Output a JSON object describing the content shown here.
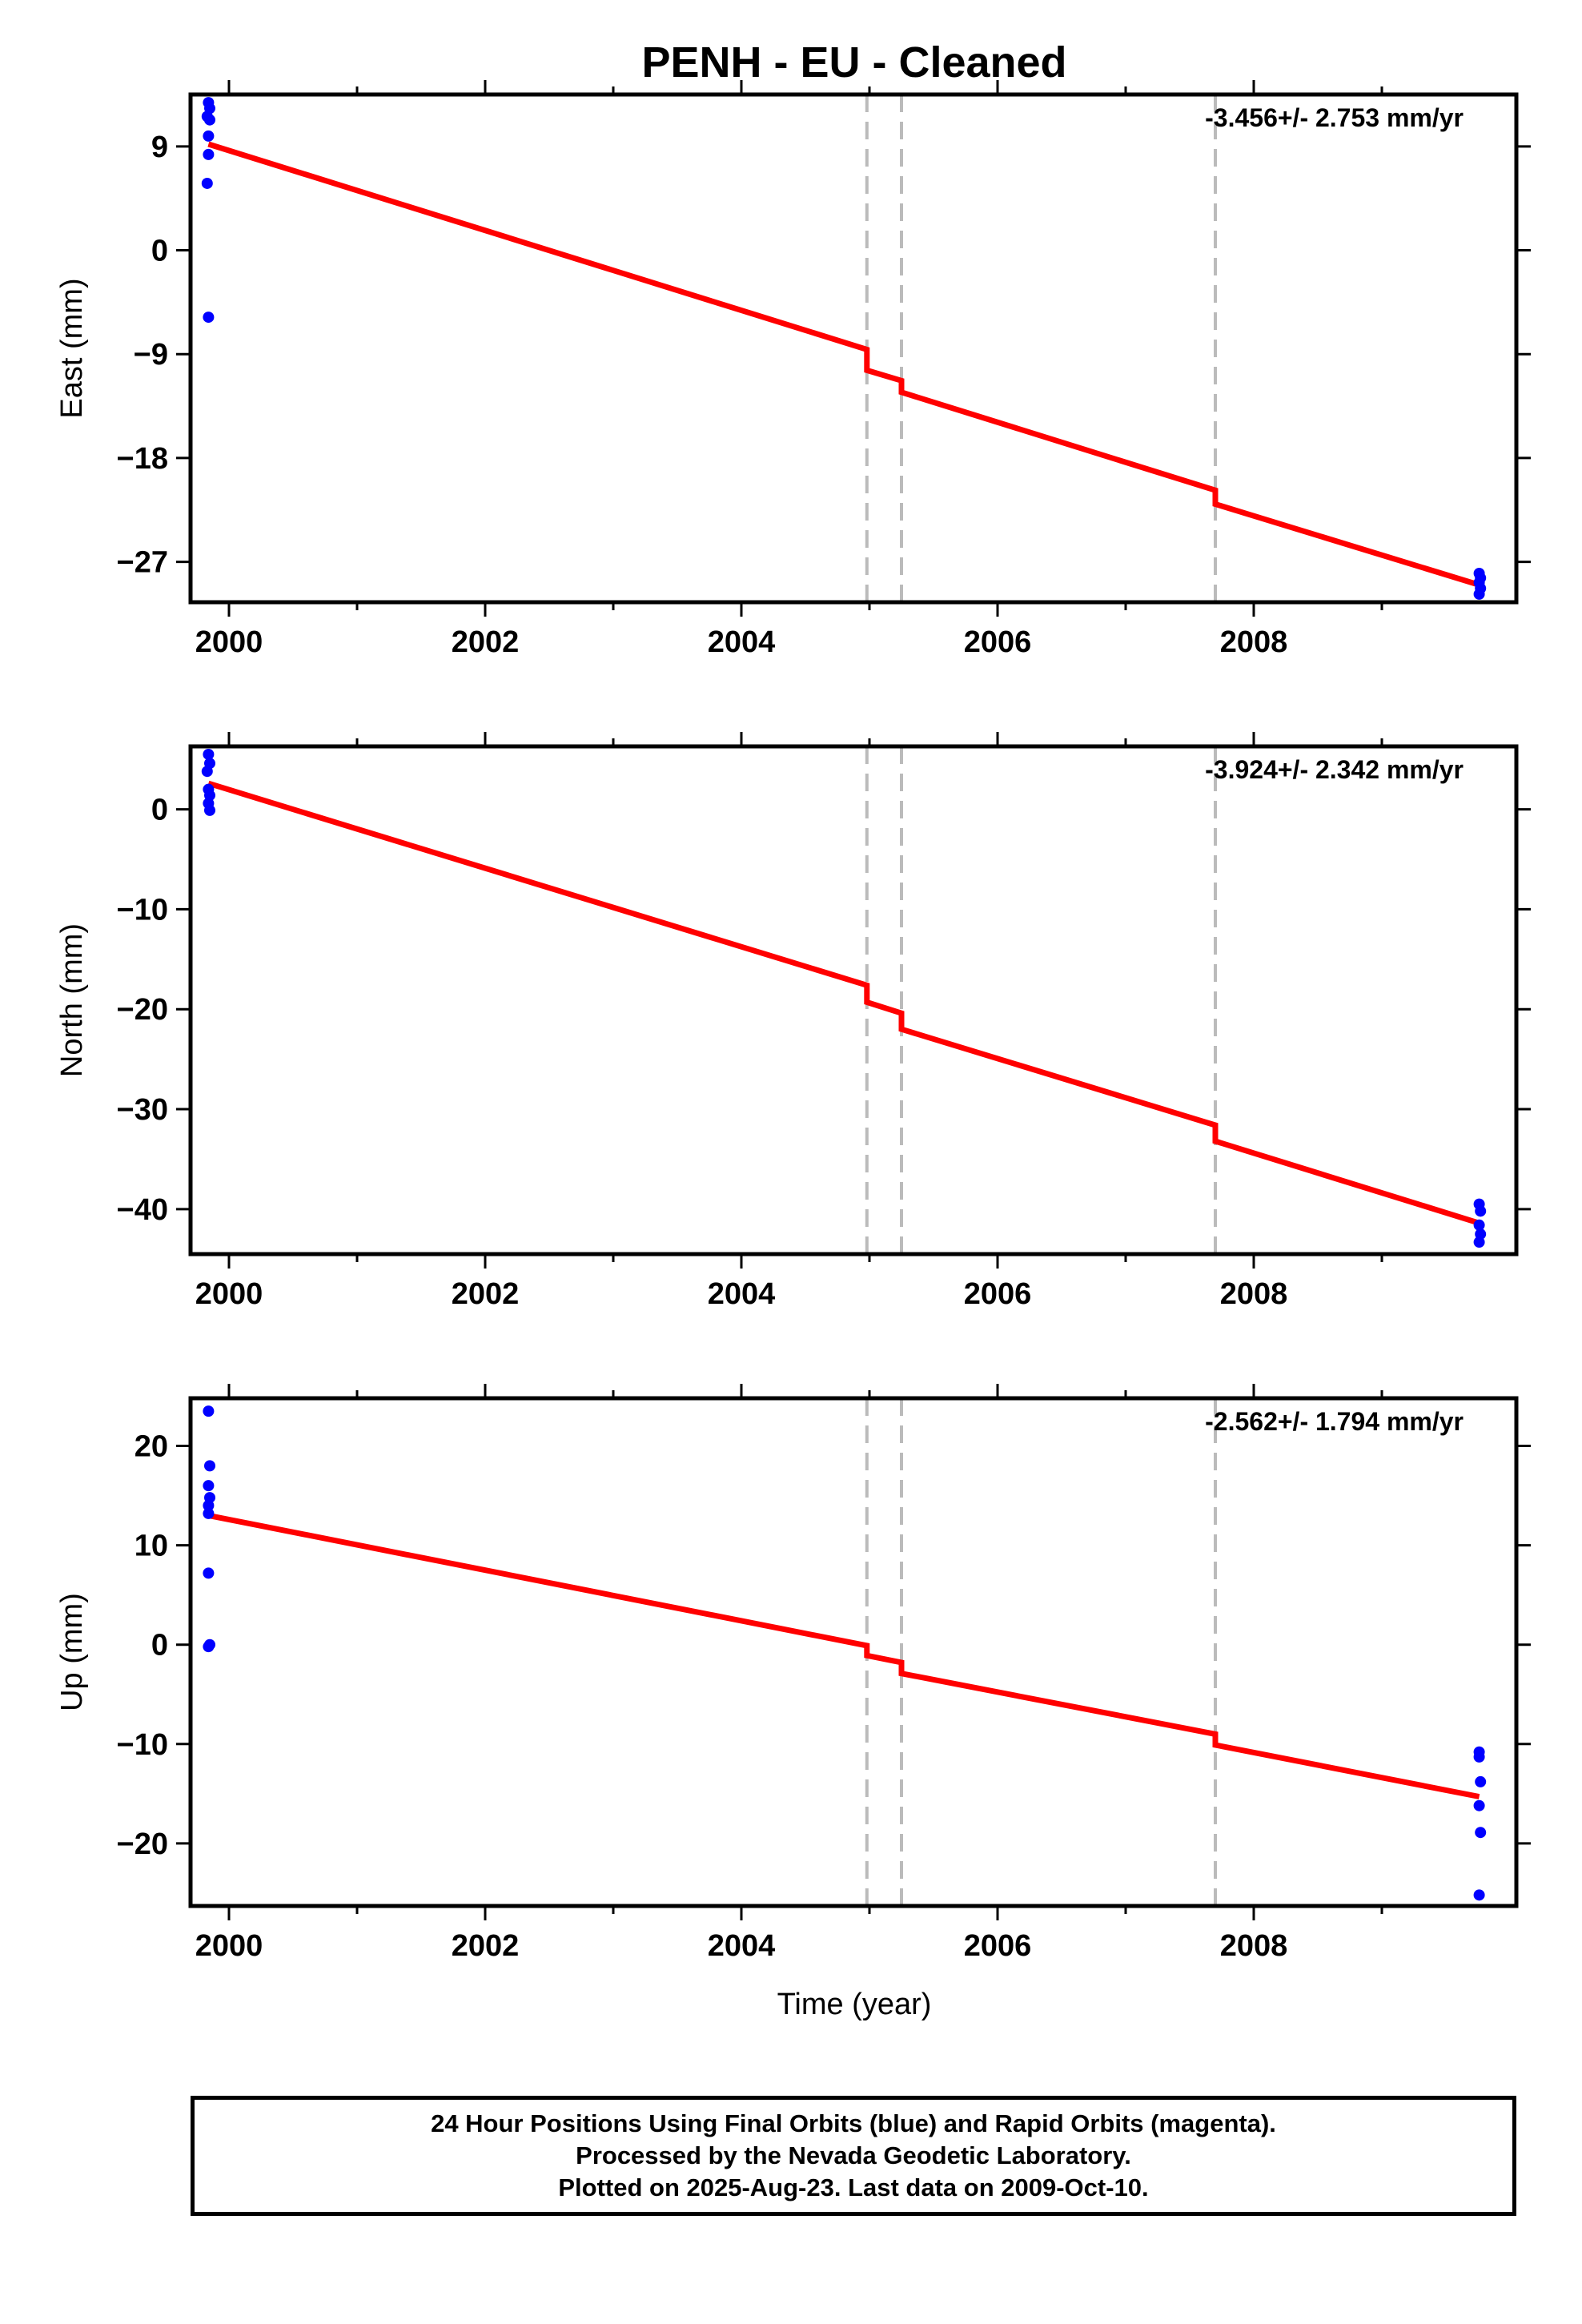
{
  "title": "PENH  - EU - Cleaned",
  "colors": {
    "fit": "#ff0000",
    "final_orbit_points": "#0000ff",
    "break_lines": "#bbbbbb",
    "frame": "#000000"
  },
  "chart_data": [
    {
      "type": "scatter",
      "ylabel": "East (mm)",
      "rate_label": "-3.456+/- 2.753 mm/yr",
      "xlim": [
        1999.7,
        2010.05
      ],
      "ylim": [
        -30.5,
        13.5
      ],
      "xticks": [
        "2000",
        "2002",
        "2004",
        "2006",
        "2008"
      ],
      "yticks": [
        "9",
        "0",
        "−9",
        "−18",
        "−27"
      ],
      "ytick_values": [
        9,
        0,
        -9,
        -18,
        -27
      ],
      "break_lines": [
        2004.98,
        2005.25,
        2007.7
      ],
      "points": [
        {
          "x": 1999.84,
          "y": 12.8
        },
        {
          "x": 1999.85,
          "y": 12.3
        },
        {
          "x": 1999.83,
          "y": 11.6
        },
        {
          "x": 1999.85,
          "y": 11.3
        },
        {
          "x": 1999.84,
          "y": 9.9
        },
        {
          "x": 1999.84,
          "y": 8.3
        },
        {
          "x": 1999.83,
          "y": 5.8
        },
        {
          "x": 1999.84,
          "y": -5.8
        },
        {
          "x": 2009.76,
          "y": -28.0
        },
        {
          "x": 2009.77,
          "y": -28.4
        },
        {
          "x": 2009.76,
          "y": -28.8
        },
        {
          "x": 2009.77,
          "y": -29.3
        },
        {
          "x": 2009.76,
          "y": -29.8
        }
      ],
      "fit": [
        {
          "x": 1999.84,
          "y": 9.2
        },
        {
          "x": 2004.98,
          "y": -8.6
        },
        {
          "x": 2004.98,
          "y": -10.4
        },
        {
          "x": 2005.25,
          "y": -11.3
        },
        {
          "x": 2005.25,
          "y": -12.3
        },
        {
          "x": 2007.7,
          "y": -20.8
        },
        {
          "x": 2007.7,
          "y": -22.0
        },
        {
          "x": 2009.76,
          "y": -29.0
        }
      ]
    },
    {
      "type": "scatter",
      "ylabel": "North (mm)",
      "rate_label": "-3.924+/- 2.342 mm/yr",
      "xlim": [
        1999.7,
        2010.05
      ],
      "ylim": [
        -44.5,
        6.3
      ],
      "xticks": [
        "2000",
        "2002",
        "2004",
        "2006",
        "2008"
      ],
      "yticks": [
        "0",
        "−10",
        "−20",
        "−30",
        "−40"
      ],
      "ytick_values": [
        0,
        -10,
        -20,
        -30,
        -40
      ],
      "break_lines": [
        2004.98,
        2005.25,
        2007.7
      ],
      "points": [
        {
          "x": 1999.84,
          "y": 5.5
        },
        {
          "x": 1999.85,
          "y": 4.6
        },
        {
          "x": 1999.83,
          "y": 3.8
        },
        {
          "x": 1999.84,
          "y": 2.0
        },
        {
          "x": 1999.85,
          "y": 1.4
        },
        {
          "x": 1999.84,
          "y": 0.6
        },
        {
          "x": 1999.85,
          "y": -0.1
        },
        {
          "x": 2009.76,
          "y": -39.5
        },
        {
          "x": 2009.77,
          "y": -40.2
        },
        {
          "x": 2009.76,
          "y": -41.6
        },
        {
          "x": 2009.77,
          "y": -42.5
        },
        {
          "x": 2009.76,
          "y": -43.3
        }
      ],
      "fit": [
        {
          "x": 1999.84,
          "y": 2.6
        },
        {
          "x": 2004.98,
          "y": -17.6
        },
        {
          "x": 2004.98,
          "y": -19.3
        },
        {
          "x": 2005.25,
          "y": -20.4
        },
        {
          "x": 2005.25,
          "y": -22.0
        },
        {
          "x": 2007.7,
          "y": -31.6
        },
        {
          "x": 2007.7,
          "y": -33.2
        },
        {
          "x": 2009.76,
          "y": -41.4
        }
      ]
    },
    {
      "type": "scatter",
      "ylabel": "Up (mm)",
      "rate_label": "-2.562+/- 1.794 mm/yr",
      "xlim": [
        1999.7,
        2010.05
      ],
      "ylim": [
        -26.3,
        24.8
      ],
      "xticks": [
        "2000",
        "2002",
        "2004",
        "2006",
        "2008"
      ],
      "yticks": [
        "20",
        "10",
        "0",
        "−10",
        "−20"
      ],
      "ytick_values": [
        20,
        10,
        0,
        -10,
        -20
      ],
      "break_lines": [
        2004.98,
        2005.25,
        2007.7
      ],
      "points": [
        {
          "x": 1999.84,
          "y": 23.5
        },
        {
          "x": 1999.85,
          "y": 18.0
        },
        {
          "x": 1999.84,
          "y": 16.0
        },
        {
          "x": 1999.85,
          "y": 14.8
        },
        {
          "x": 1999.84,
          "y": 14.0
        },
        {
          "x": 1999.84,
          "y": 13.2
        },
        {
          "x": 1999.84,
          "y": 7.2
        },
        {
          "x": 1999.85,
          "y": 0.0
        },
        {
          "x": 1999.84,
          "y": -0.2
        },
        {
          "x": 2009.76,
          "y": -10.8
        },
        {
          "x": 2009.76,
          "y": -11.3
        },
        {
          "x": 2009.77,
          "y": -13.8
        },
        {
          "x": 2009.76,
          "y": -16.2
        },
        {
          "x": 2009.77,
          "y": -18.9
        },
        {
          "x": 2009.76,
          "y": -25.2
        }
      ],
      "fit": [
        {
          "x": 1999.84,
          "y": 13.0
        },
        {
          "x": 2004.98,
          "y": -0.1
        },
        {
          "x": 2004.98,
          "y": -1.1
        },
        {
          "x": 2005.25,
          "y": -1.8
        },
        {
          "x": 2005.25,
          "y": -2.9
        },
        {
          "x": 2007.7,
          "y": -9.0
        },
        {
          "x": 2007.7,
          "y": -10.1
        },
        {
          "x": 2009.76,
          "y": -15.3
        }
      ]
    }
  ],
  "xlabel": "Time (year)",
  "footer": {
    "line1": "24 Hour Positions Using Final Orbits (blue) and Rapid Orbits (magenta).",
    "line2": "Processed by the Nevada Geodetic Laboratory.",
    "line3": "Plotted on 2025-Aug-23. Last data on 2009-Oct-10."
  }
}
